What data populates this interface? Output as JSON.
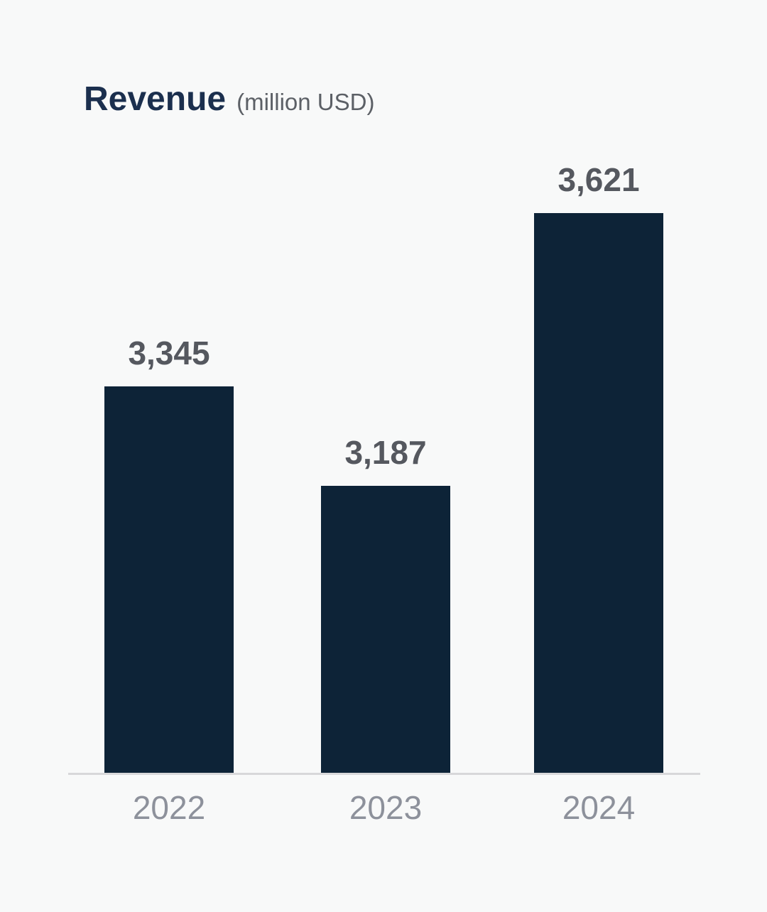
{
  "page": {
    "background": "#f8f9f9"
  },
  "header": {
    "title": "Revenue",
    "subtitle": "(million USD)"
  },
  "chart_data": {
    "type": "bar",
    "title": "Revenue",
    "subtitle": "(million USD)",
    "unit": "million USD",
    "categories": [
      "2022",
      "2023",
      "2024"
    ],
    "values": [
      3345,
      3187,
      3621
    ],
    "value_labels": [
      "3,345",
      "3,187",
      "3,621"
    ],
    "ylim": [
      2730,
      3621
    ],
    "grid": false,
    "legend": false,
    "colors": {
      "bar": "#0d2337",
      "title": "#1b2f4e",
      "subtitle": "#5c6066",
      "value_label": "#55585f",
      "category_label": "#8d919b",
      "axis_line": "#d8d8da",
      "background": "#f8f9f9"
    }
  }
}
